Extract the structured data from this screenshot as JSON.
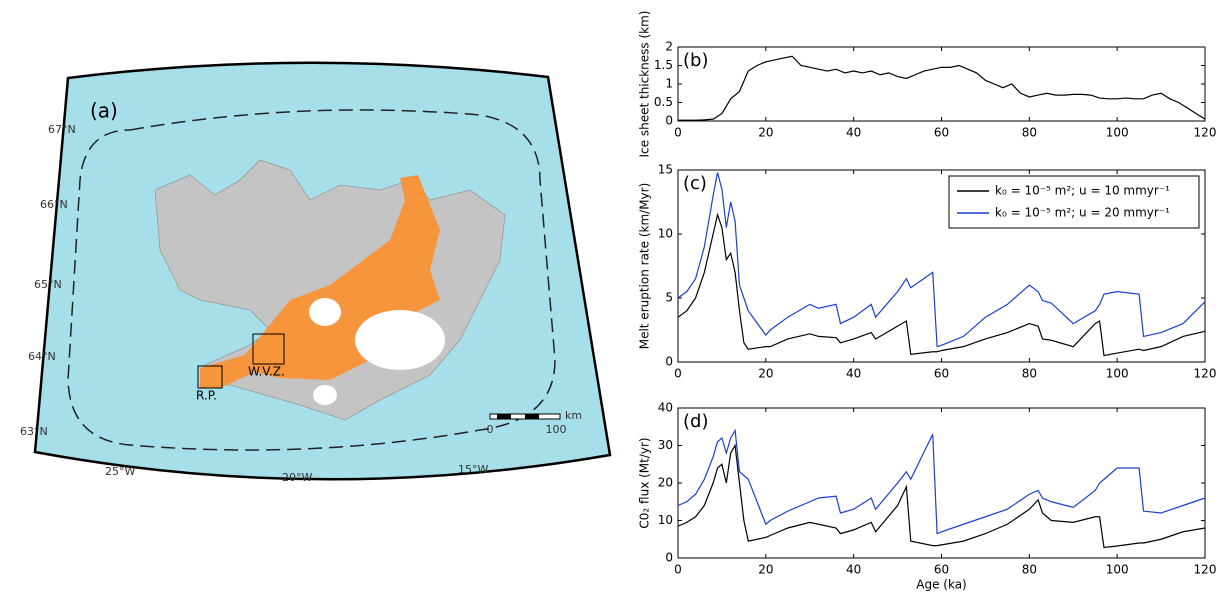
{
  "map": {
    "label": "(a)",
    "latitudes": [
      "67°N",
      "66°N",
      "65°N",
      "64°N",
      "63°N"
    ],
    "longitudes": [
      "25°W",
      "20°W",
      "15°W"
    ],
    "regions": [
      "W.V.Z.",
      "R.P."
    ],
    "scale": {
      "unit": "km",
      "start": "0",
      "end": "100"
    }
  },
  "chart_data": [
    {
      "type": "line",
      "label": "(b)",
      "y_label": "Ice sheet thickness (km)",
      "x": [
        0,
        2,
        4,
        6,
        8,
        10,
        12,
        14,
        16,
        18,
        20,
        22,
        24,
        26,
        28,
        30,
        32,
        34,
        36,
        38,
        40,
        42,
        44,
        46,
        48,
        50,
        52,
        54,
        56,
        58,
        60,
        62,
        64,
        66,
        68,
        70,
        72,
        74,
        76,
        78,
        80,
        82,
        84,
        86,
        88,
        90,
        92,
        94,
        96,
        98,
        100,
        102,
        104,
        106,
        108,
        110,
        112,
        114,
        116,
        118,
        120
      ],
      "series": [
        {
          "name": null,
          "color": "#000000",
          "values": [
            0.02,
            0.02,
            0.02,
            0.03,
            0.05,
            0.2,
            0.6,
            0.8,
            1.35,
            1.5,
            1.6,
            1.65,
            1.7,
            1.75,
            1.5,
            1.45,
            1.4,
            1.35,
            1.4,
            1.3,
            1.35,
            1.3,
            1.35,
            1.25,
            1.3,
            1.2,
            1.15,
            1.25,
            1.35,
            1.4,
            1.45,
            1.45,
            1.5,
            1.4,
            1.3,
            1.1,
            1.0,
            0.9,
            1.0,
            0.75,
            0.65,
            0.7,
            0.75,
            0.7,
            0.7,
            0.72,
            0.72,
            0.7,
            0.62,
            0.6,
            0.6,
            0.62,
            0.6,
            0.6,
            0.7,
            0.75,
            0.6,
            0.5,
            0.35,
            0.2,
            0.05
          ]
        }
      ],
      "xlim": [
        0,
        120
      ],
      "xticks": [
        0,
        20,
        40,
        60,
        80,
        100,
        120
      ],
      "ylim": [
        0,
        2
      ],
      "yticks": [
        0,
        0.5,
        1,
        1.5,
        2
      ]
    },
    {
      "type": "line",
      "label": "(c)",
      "y_label": "Melt eruption rate (km/Myr)",
      "x": [
        0,
        2,
        4,
        6,
        8,
        9,
        10,
        11,
        12,
        13,
        14,
        15,
        16,
        20,
        21,
        25,
        30,
        32,
        36,
        37,
        40,
        44,
        45,
        50,
        52,
        53,
        58,
        59,
        60,
        65,
        70,
        75,
        80,
        82,
        83,
        85,
        90,
        95,
        96,
        97,
        100,
        105,
        106,
        110,
        115,
        120
      ],
      "series": [
        {
          "name": "k₀ = 10⁻⁵ m²; u = 10 mmyr⁻¹",
          "color": "#000000",
          "values": [
            3.5,
            4,
            5,
            7,
            10,
            11.5,
            10.5,
            8,
            8.5,
            7,
            4,
            1.5,
            1.0,
            1.2,
            1.2,
            1.8,
            2.2,
            2,
            1.9,
            1.5,
            1.8,
            2.3,
            1.8,
            2.8,
            3.2,
            0.6,
            0.8,
            0.8,
            0.9,
            1.2,
            1.8,
            2.3,
            3,
            2.8,
            1.8,
            1.7,
            1.2,
            3.0,
            3.2,
            0.5,
            0.7,
            1.0,
            0.9,
            1.2,
            2.0,
            2.4
          ]
        },
        {
          "name": "k₀ = 10⁻⁵ m²; u = 20 mmyr⁻¹",
          "color": "#1a3fd1",
          "values": [
            5,
            5.5,
            6.5,
            9,
            13,
            14.8,
            13.5,
            10.5,
            12.5,
            11,
            6,
            5,
            4,
            2.1,
            2.5,
            3.5,
            4.5,
            4.2,
            4.5,
            3,
            3.5,
            4.5,
            3.5,
            5.5,
            6.5,
            5.8,
            7,
            1.2,
            1.3,
            2,
            3.5,
            4.5,
            6,
            5.5,
            4.8,
            4.6,
            3,
            4,
            4.5,
            5.3,
            5.5,
            5.3,
            2.0,
            2.3,
            3,
            4.7
          ]
        }
      ],
      "xlim": [
        0,
        120
      ],
      "xticks": [
        0,
        20,
        40,
        60,
        80,
        100,
        120
      ],
      "ylim": [
        0,
        15
      ],
      "yticks": [
        0,
        5,
        10,
        15
      ],
      "legend": "upper right"
    },
    {
      "type": "line",
      "label": "(d)",
      "y_label": "C0₂ flux (Mt/yr)",
      "x_label": "Age (ka)",
      "x": [
        0,
        2,
        4,
        6,
        8,
        9,
        10,
        11,
        12,
        13,
        14,
        15,
        16,
        20,
        21,
        25,
        30,
        32,
        36,
        37,
        40,
        44,
        45,
        50,
        52,
        53,
        58,
        59,
        60,
        65,
        70,
        75,
        80,
        82,
        83,
        85,
        90,
        95,
        96,
        97,
        100,
        105,
        106,
        110,
        115,
        120
      ],
      "series": [
        {
          "name": null,
          "color": "#000000",
          "values": [
            8.5,
            9.5,
            11,
            14,
            20,
            24,
            25,
            20,
            28,
            30,
            20,
            10,
            4.5,
            5.5,
            6,
            8,
            9.5,
            9,
            8,
            6.5,
            7.5,
            9.5,
            7,
            14,
            19,
            4.5,
            3.3,
            3.3,
            3.5,
            4.5,
            6.5,
            9,
            13,
            15.5,
            12,
            10,
            9.5,
            11,
            11,
            2.8,
            3.2,
            4,
            4,
            5,
            7,
            8
          ]
        },
        {
          "name": null,
          "color": "#1a3fd1",
          "values": [
            14,
            15,
            17,
            21,
            27,
            31,
            32,
            28,
            32,
            34,
            23,
            22,
            21,
            9,
            10,
            12.5,
            15,
            16,
            16.5,
            12,
            13,
            16,
            13,
            20,
            23,
            21,
            33,
            6.5,
            7,
            9,
            11,
            13,
            17,
            18,
            16,
            15,
            13.5,
            18,
            20,
            21,
            24,
            24,
            12.5,
            12,
            14,
            16
          ]
        }
      ],
      "xlim": [
        0,
        120
      ],
      "xticks": [
        0,
        20,
        40,
        60,
        80,
        100,
        120
      ],
      "ylim": [
        0,
        40
      ],
      "yticks": [
        0,
        10,
        20,
        30,
        40
      ]
    }
  ]
}
